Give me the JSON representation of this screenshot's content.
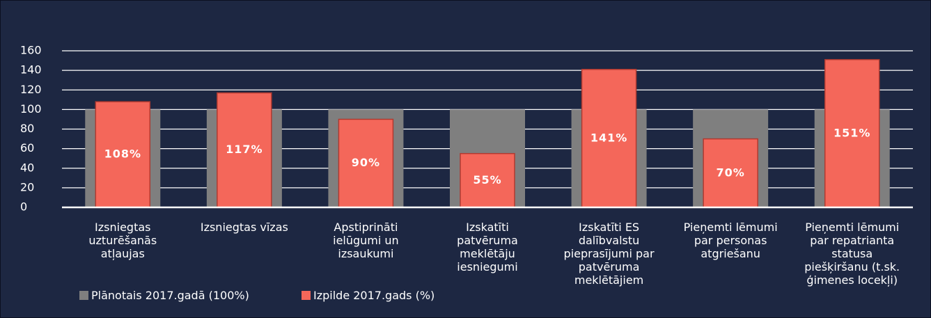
{
  "chart_data": {
    "type": "bar",
    "categories": [
      "Izsniegtas uzturēšanās atļaujas",
      "Izsniegtas vīzas",
      "Apstiprināti ielūgumi un izsaukumi",
      "Izskatīti patvēruma meklētāju iesniegumi",
      "Izskatīti ES dalībvalstu pieprasījumi par patvēruma meklētājiem",
      "Pieņemti lēmumi par personas atgriešanu",
      "Pieņemti lēmumi par repatrianta statusa piešķiršanu (t.sk. ģimenes locekļi)"
    ],
    "series": [
      {
        "name": "Plānotais 2017.gadā (100%)",
        "color": "#7f7f7f",
        "values": [
          100,
          100,
          100,
          100,
          100,
          100,
          100
        ]
      },
      {
        "name": "Izpilde 2017.gads (%)",
        "color": "#f4675a",
        "values": [
          108,
          117,
          90,
          55,
          141,
          70,
          151
        ],
        "value_labels": [
          "108%",
          "117%",
          "90%",
          "55%",
          "141%",
          "70%",
          "151%"
        ]
      }
    ],
    "ylim": [
      0,
      160
    ],
    "yticks": [
      0,
      20,
      40,
      60,
      80,
      100,
      120,
      140,
      160
    ],
    "grid": true,
    "legend": "bottom-left"
  }
}
